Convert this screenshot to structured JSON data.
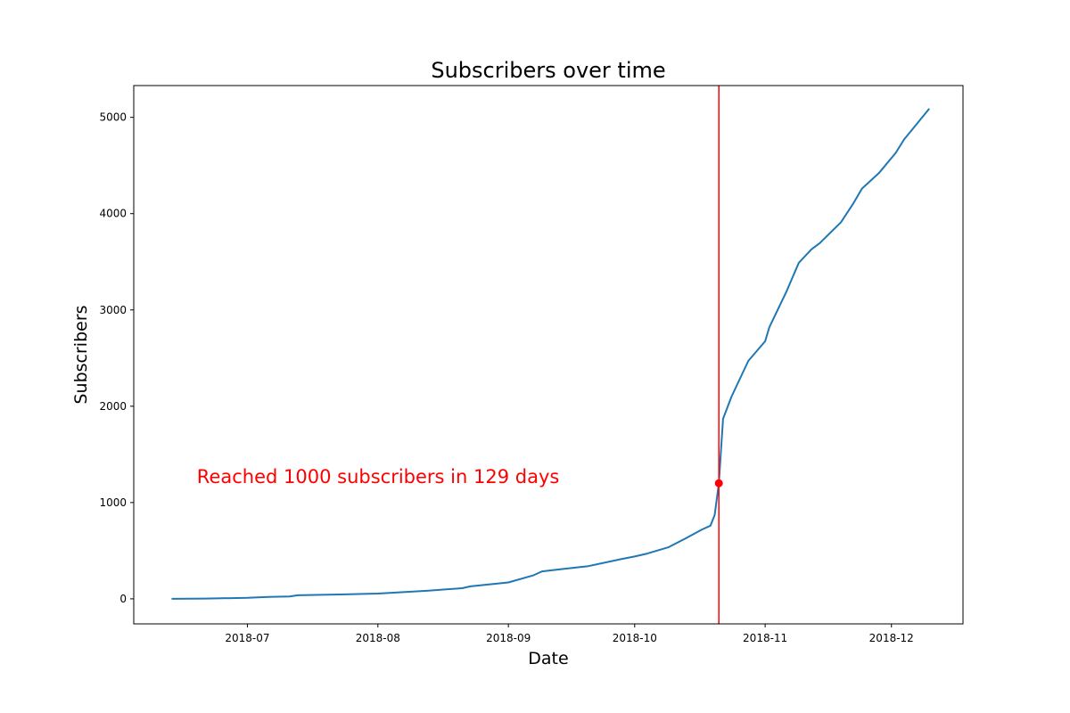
{
  "chart_data": {
    "type": "line",
    "title": "Subscribers over time",
    "xlabel": "Date",
    "ylabel": "Subscribers",
    "xlim": [
      "2018-06-04",
      "2018-12-18"
    ],
    "ylim": [
      -260,
      5330
    ],
    "grid": false,
    "x_ticks": [
      "2018-07-01",
      "2018-08-01",
      "2018-09-01",
      "2018-10-01",
      "2018-11-01",
      "2018-12-01"
    ],
    "x_tick_labels": [
      "2018-07",
      "2018-08",
      "2018-09",
      "2018-10",
      "2018-11",
      "2018-12"
    ],
    "y_ticks": [
      0,
      1000,
      2000,
      3000,
      4000,
      5000
    ],
    "y_tick_labels": [
      "0",
      "1000",
      "2000",
      "3000",
      "4000",
      "5000"
    ],
    "series": [
      {
        "color": "#1f77b4",
        "x": [
          "2018-06-13",
          "2018-06-21",
          "2018-07-01",
          "2018-07-06",
          "2018-07-11",
          "2018-07-13",
          "2018-07-23",
          "2018-08-01",
          "2018-08-13",
          "2018-08-21",
          "2018-08-23",
          "2018-09-01",
          "2018-09-07",
          "2018-09-09",
          "2018-09-14",
          "2018-09-20",
          "2018-09-28",
          "2018-10-01",
          "2018-10-04",
          "2018-10-09",
          "2018-10-13",
          "2018-10-17",
          "2018-10-19",
          "2018-10-20",
          "2018-10-21",
          "2018-10-22",
          "2018-10-24",
          "2018-10-28",
          "2018-11-01",
          "2018-11-02",
          "2018-11-06",
          "2018-11-09",
          "2018-11-12",
          "2018-11-14",
          "2018-11-19",
          "2018-11-22",
          "2018-11-24",
          "2018-11-28",
          "2018-12-02",
          "2018-12-04",
          "2018-12-10"
        ],
        "y": [
          0,
          3,
          10,
          20,
          25,
          37,
          45,
          55,
          85,
          110,
          130,
          170,
          245,
          285,
          310,
          340,
          415,
          440,
          470,
          535,
          625,
          720,
          760,
          870,
          1200,
          1870,
          2100,
          2470,
          2675,
          2820,
          3185,
          3490,
          3630,
          3695,
          3910,
          4110,
          4260,
          4420,
          4630,
          4770,
          5090
        ]
      }
    ],
    "vline": {
      "x": "2018-10-21",
      "color": "#ff0000"
    },
    "marker": {
      "x": "2018-10-21",
      "y": 1200,
      "color": "#ff0000"
    },
    "annotation": {
      "text": "Reached 1000 subscribers in 129 days",
      "x": "2018-06-19",
      "y": 1200,
      "color": "#ff0000"
    }
  }
}
